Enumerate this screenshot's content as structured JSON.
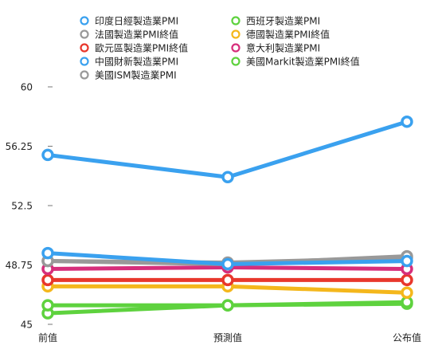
{
  "chart_data": {
    "type": "line",
    "title": "",
    "xlabel": "",
    "ylabel": "",
    "categories": [
      "前值",
      "預測值",
      "公布值"
    ],
    "y_ticks": [
      45,
      48.75,
      52.5,
      56.25,
      60
    ],
    "ylim": [
      45,
      60
    ],
    "grid": false,
    "legend_position": "top",
    "series": [
      {
        "name": "印度日經製造業PMI",
        "color": "#3aa1ef",
        "values": [
          55.7,
          54.3,
          57.8
        ]
      },
      {
        "name": "法國製造業PMI終值",
        "color": "#999999",
        "values": [
          49.0,
          48.9,
          49.2
        ]
      },
      {
        "name": "歐元區製造業PMI終值",
        "color": "#e8372c",
        "values": [
          47.8,
          47.8,
          47.8
        ]
      },
      {
        "name": "中國財新製造業PMI",
        "color": "#3aa1ef",
        "values": [
          49.5,
          48.8,
          49.0
        ]
      },
      {
        "name": "美國ISM製造業PMI",
        "color": "#999999",
        "values": [
          49.0,
          48.8,
          49.3
        ]
      },
      {
        "name": "西班牙製造業PMI",
        "color": "#5ed23e",
        "values": [
          45.7,
          46.2,
          46.3
        ]
      },
      {
        "name": "德國製造業PMI終值",
        "color": "#f4b71c",
        "values": [
          47.4,
          47.4,
          47.0
        ]
      },
      {
        "name": "意大利製造業PMI",
        "color": "#d62e7b",
        "values": [
          48.5,
          48.6,
          48.5
        ]
      },
      {
        "name": "美國Markit製造業PMI終值",
        "color": "#5ed23e",
        "values": [
          46.2,
          46.2,
          46.4
        ]
      }
    ]
  }
}
